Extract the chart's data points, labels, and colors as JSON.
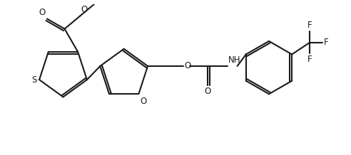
{
  "background_color": "#ffffff",
  "line_color": "#1a1a1a",
  "line_width": 1.5,
  "font_size": 8.5,
  "figsize": [
    4.92,
    2.18
  ],
  "dpi": 100,
  "xlim": [
    0,
    9.5
  ],
  "ylim": [
    0,
    4.0
  ]
}
